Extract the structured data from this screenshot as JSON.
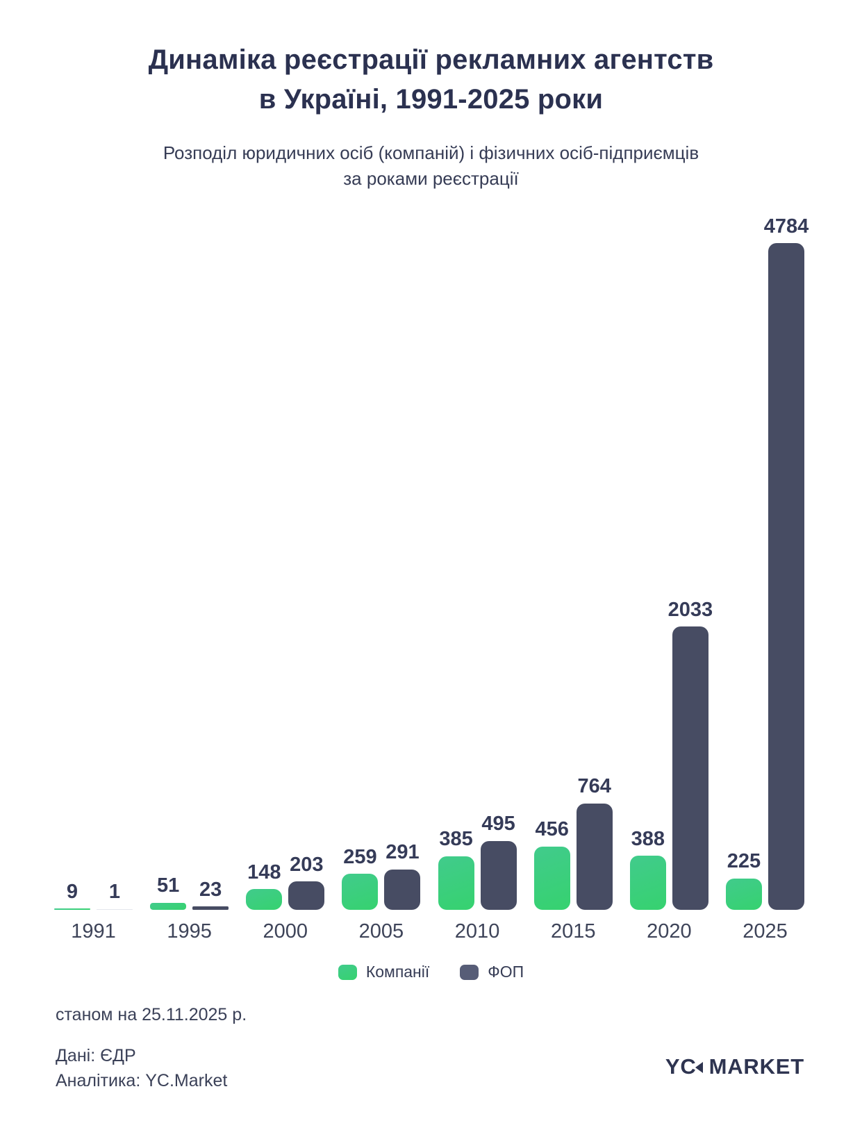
{
  "header": {
    "title_line1": "Динаміка реєстрації рекламних агентств",
    "title_line2": "в Україні, 1991-2025 роки",
    "subtitle_line1": "Розподіл юридичних осіб (компаній) і фізичних осіб-підприємців",
    "subtitle_line2": "за роками реєстрації"
  },
  "chart_data": {
    "type": "bar",
    "title": "Динаміка реєстрації рекламних агентств в Україні, 1991-2025 роки",
    "subtitle": "Розподіл юридичних осіб (компаній) і фізичних осіб-підприємців за роками реєстрації",
    "categories": [
      "1991",
      "1995",
      "2000",
      "2005",
      "2010",
      "2015",
      "2020",
      "2025"
    ],
    "series": [
      {
        "name": "Компанії",
        "color": "#3BCF7D",
        "values": [
          9,
          51,
          148,
          259,
          385,
          456,
          388,
          225
        ]
      },
      {
        "name": "ФОП",
        "color": "#474C63",
        "values": [
          1,
          23,
          203,
          291,
          495,
          764,
          2033,
          4784
        ]
      }
    ],
    "value_labels": true,
    "grid": false,
    "xlabel": "",
    "ylabel": "",
    "ylim": [
      0,
      4784
    ],
    "legend_position": "bottom"
  },
  "legend": {
    "items": [
      {
        "label": "Компанії",
        "color": "#3BCF7D"
      },
      {
        "label": "ФОП",
        "color": "#575D77"
      }
    ]
  },
  "footer": {
    "as_of": "станом на 25.11.2025 р.",
    "source": "Дані: ЄДР",
    "analytics": "Аналітика: YC.Market",
    "logo_yc": "YC",
    "logo_market": "MARKET"
  },
  "colors": {
    "background": "#FFFFFF",
    "title": "#2B3150",
    "subtitle": "#363C55",
    "bar_companies_top": "#41CB8C",
    "bar_companies_bottom": "#36D26F",
    "bar_fop": "#474C63",
    "value_label": "#353B58",
    "year_label": "#3E4459",
    "logo": "#2E3450"
  }
}
